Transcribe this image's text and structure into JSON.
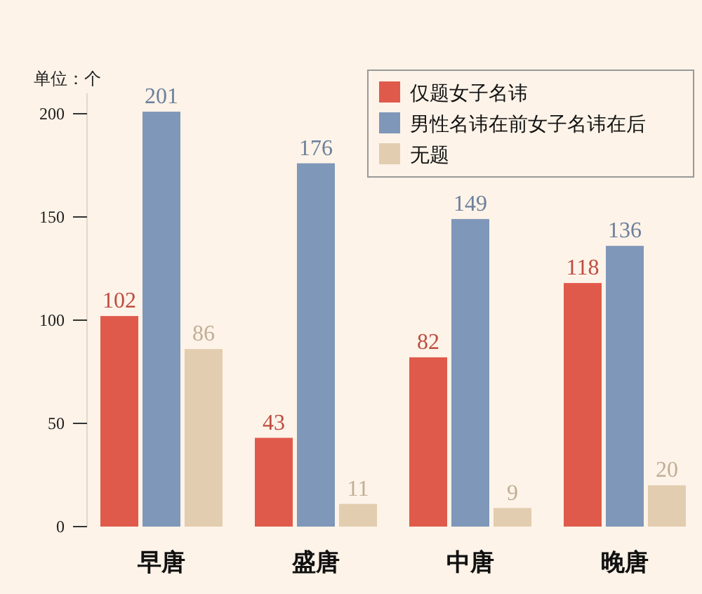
{
  "chart_data": {
    "type": "bar",
    "ylabel": "单位：个",
    "categories": [
      "早唐",
      "盛唐",
      "中唐",
      "晚唐"
    ],
    "series": [
      {
        "name": "仅题女子名讳",
        "color": "#e05a4b",
        "values": [
          102,
          43,
          82,
          118
        ]
      },
      {
        "name": "男性名讳在前女子名讳在后",
        "color": "#7f97b8",
        "values": [
          201,
          176,
          149,
          136
        ]
      },
      {
        "name": "无题",
        "color": "#e3cdb0",
        "values": [
          86,
          11,
          9,
          20
        ]
      }
    ],
    "ylim": [
      0,
      210
    ],
    "yticks": [
      0,
      50,
      100,
      150,
      200
    ],
    "data_labels": true,
    "legend": "top right",
    "grid": false
  }
}
